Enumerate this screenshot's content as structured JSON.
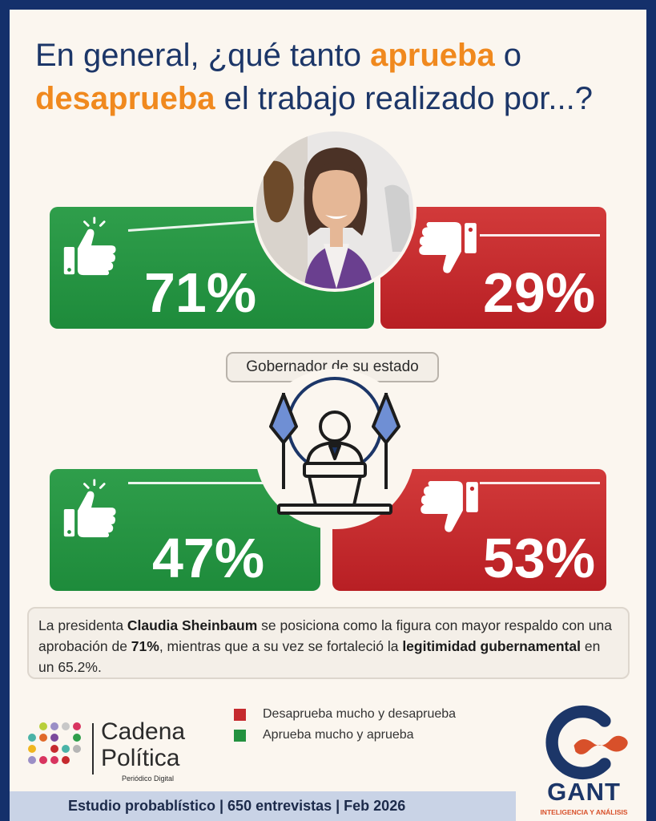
{
  "title": {
    "part1": "En general, ¿qué tanto ",
    "highlight1": "aprueba",
    "part2": " o ",
    "highlight2": "desaprueba",
    "part3": " el trabajo realizado por...?"
  },
  "chart_data": {
    "type": "bar",
    "categories": [
      "",
      "Gobernador de su estado"
    ],
    "series": [
      {
        "name": "Aprueba mucho y aprueba",
        "values": [
          71,
          47
        ],
        "color": "#23913f"
      },
      {
        "name": "Desaprueba mucho y desaprueba",
        "values": [
          29,
          53
        ],
        "color": "#c52a2e"
      }
    ],
    "value_labels": {
      "approve": [
        "71%",
        "47%"
      ],
      "disapprove": [
        "29%",
        "53%"
      ]
    },
    "legend_position": "bottom-center",
    "title": "",
    "xlabel": "",
    "ylabel": ""
  },
  "section2_label": "Gobernador de su estado",
  "summary": {
    "t1": "La presidenta ",
    "b1": "Claudia Sheinbaum",
    "t2": " se posiciona como la figura con mayor respaldo con una aprobación de ",
    "b2": "71%",
    "t3": ", mientras que a su vez se fortaleció la ",
    "b3": "legitimidad gubernamental",
    "t4": " en un 65.2%."
  },
  "legend": {
    "disapprove": "Desaprueba mucho y desaprueba",
    "approve": "Aprueba mucho y aprueba"
  },
  "brand_left": {
    "line1": "Cadena",
    "line2": "Política",
    "tagline": "Periódico Digital"
  },
  "brand_right": {
    "name": "GANT",
    "tagline": "INTELIGENCIA Y ANÁLISIS"
  },
  "footer": "Estudio probablístico | 650 entrevistas | Feb 2026",
  "icons": {
    "approve": "thumbs-up-icon",
    "disapprove": "thumbs-down-icon",
    "figure2": "podium-speaker-icon",
    "figure1": "portrait-photo"
  }
}
